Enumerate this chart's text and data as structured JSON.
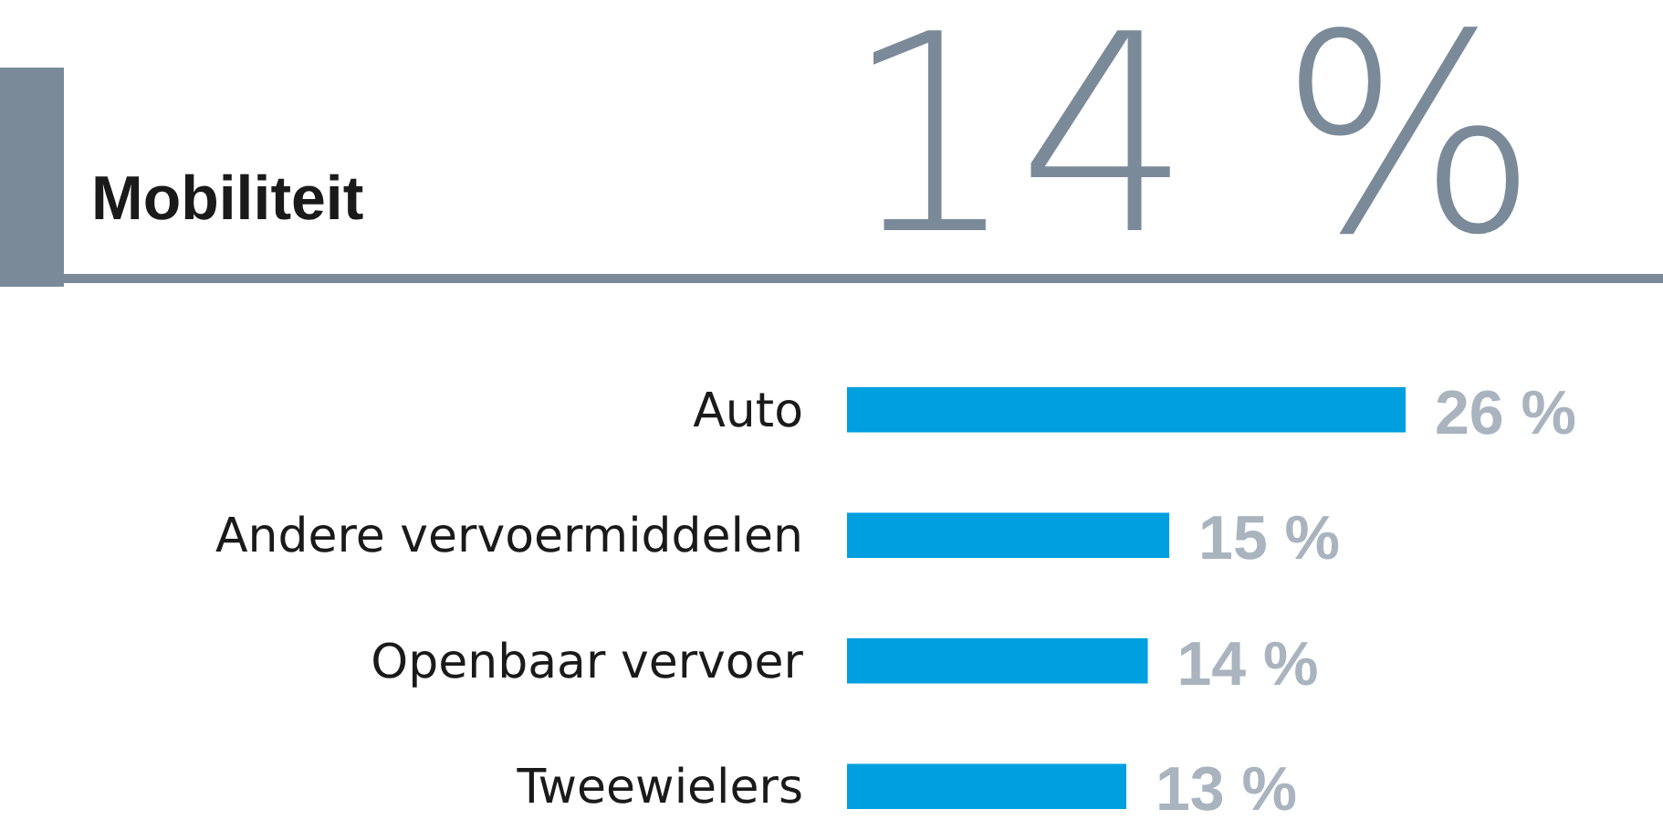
{
  "chart_data": {
    "type": "bar",
    "orientation": "horizontal",
    "title": "Mobiliteit",
    "annotations": [
      "14 %"
    ],
    "categories": [
      "Auto",
      "Andere vervoermiddelen",
      "Openbaar vervoer",
      "Tweewielers"
    ],
    "values": [
      26,
      15,
      14,
      13
    ],
    "color": "#009fe0",
    "value_labels": [
      "26 %",
      "15 %",
      "14 %",
      "13 %"
    ]
  }
}
